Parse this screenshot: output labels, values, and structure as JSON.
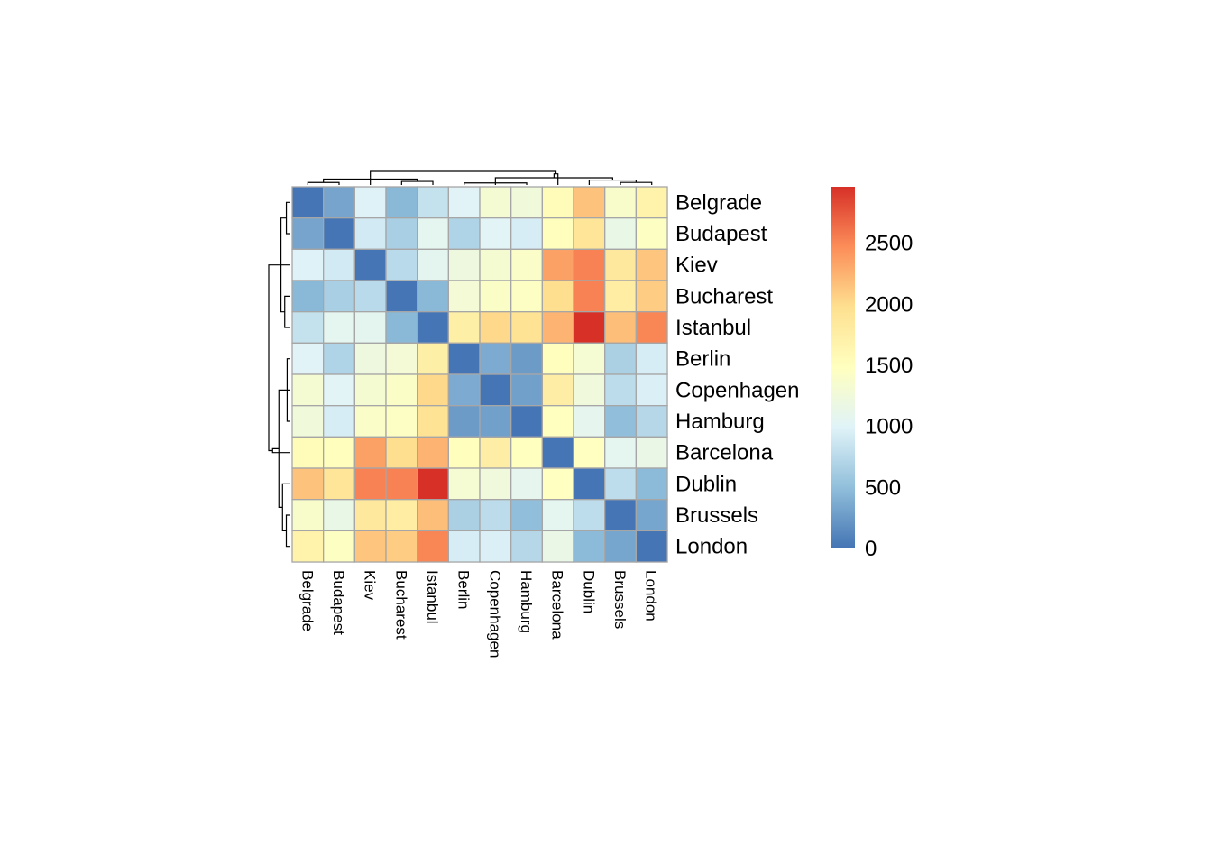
{
  "chart_data": {
    "type": "heatmap",
    "title": "",
    "rows": [
      "Belgrade",
      "Budapest",
      "Kiev",
      "Bucharest",
      "Istanbul",
      "Berlin",
      "Copenhagen",
      "Hamburg",
      "Barcelona",
      "Dublin",
      "Brussels",
      "London"
    ],
    "cols": [
      "Belgrade",
      "Budapest",
      "Kiev",
      "Bucharest",
      "Istanbul",
      "Berlin",
      "Copenhagen",
      "Hamburg",
      "Barcelona",
      "Dublin",
      "Brussels",
      "London"
    ],
    "values": [
      [
        0,
        316,
        974,
        447,
        813,
        999,
        1306,
        1242,
        1528,
        2145,
        1372,
        1688
      ],
      [
        316,
        0,
        896,
        640,
        1062,
        689,
        1011,
        927,
        1498,
        1894,
        1131,
        1450
      ],
      [
        974,
        896,
        0,
        744,
        1055,
        1203,
        1320,
        1405,
        2347,
        2519,
        1838,
        2133
      ],
      [
        447,
        640,
        744,
        0,
        445,
        1290,
        1411,
        1438,
        1975,
        2523,
        1768,
        2084
      ],
      [
        813,
        1062,
        1055,
        445,
        0,
        1735,
        2010,
        1930,
        2233,
        2956,
        2172,
        2498
      ],
      [
        999,
        689,
        1203,
        1290,
        1735,
        0,
        354,
        255,
        1498,
        1318,
        652,
        932
      ],
      [
        1306,
        1011,
        1320,
        1411,
        2010,
        354,
        0,
        288,
        1757,
        1238,
        766,
        955
      ],
      [
        1242,
        927,
        1405,
        1438,
        1930,
        255,
        288,
        0,
        1479,
        1074,
        490,
        720
      ],
      [
        1528,
        1498,
        2347,
        1975,
        2233,
        1498,
        1757,
        1479,
        0,
        1469,
        1063,
        1137
      ],
      [
        2145,
        1894,
        2519,
        2523,
        2956,
        1318,
        1238,
        1074,
        1469,
        0,
        774,
        463
      ],
      [
        1372,
        1131,
        1838,
        1768,
        2172,
        652,
        766,
        490,
        1063,
        774,
        0,
        320
      ],
      [
        1688,
        1450,
        2133,
        2084,
        2498,
        932,
        955,
        720,
        1137,
        463,
        320,
        0
      ]
    ],
    "value_range": [
      0,
      2956
    ],
    "legend": {
      "position": "right",
      "ticks": [
        0,
        500,
        1000,
        1500,
        2000,
        2500
      ]
    },
    "colors": {
      "palette": [
        "#4575B4",
        "#91BFDB",
        "#E0F3F8",
        "#FFFFBF",
        "#FEE090",
        "#FC8D59",
        "#D73027"
      ],
      "cell_border": "#A6A6A6"
    },
    "dendrogram": {
      "rows": true,
      "cols": true
    }
  }
}
